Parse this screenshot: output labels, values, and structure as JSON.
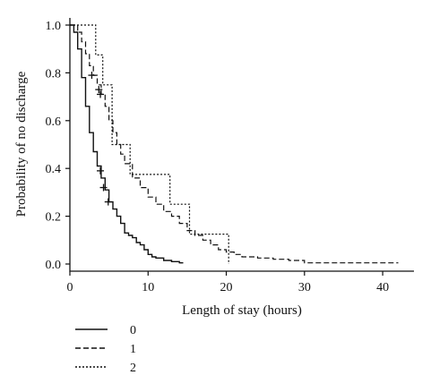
{
  "chart_data": {
    "type": "line",
    "subtype": "kaplan-meier step curves with censoring marks",
    "title": "",
    "xlabel": "Length of stay (hours)",
    "ylabel": "Probability of no discharge",
    "xlim": [
      0,
      44
    ],
    "ylim": [
      -0.03,
      1.03
    ],
    "xticks": [
      0,
      10,
      20,
      30,
      40
    ],
    "xtick_labels": [
      "0",
      "10",
      "20",
      "30",
      "40"
    ],
    "yticks": [
      0.0,
      0.2,
      0.4,
      0.6,
      0.8,
      1.0
    ],
    "ytick_labels": [
      "0.0",
      "0.2",
      "0.4",
      "0.6",
      "0.8",
      "1.0"
    ],
    "grid": false,
    "legend_position": "bottom-left below plot",
    "series": [
      {
        "name": "0",
        "line_style": "solid",
        "color": "#111111",
        "x": [
          0,
          0.5,
          1,
          1.5,
          2,
          2.5,
          3,
          3.5,
          4,
          4.5,
          5,
          5.5,
          6,
          6.5,
          7,
          7.5,
          8,
          8.5,
          9,
          9.5,
          10,
          10.5,
          11,
          12,
          13,
          14,
          14.5
        ],
        "y": [
          1.0,
          0.97,
          0.9,
          0.78,
          0.66,
          0.55,
          0.47,
          0.41,
          0.36,
          0.31,
          0.26,
          0.23,
          0.2,
          0.17,
          0.13,
          0.12,
          0.11,
          0.09,
          0.08,
          0.06,
          0.04,
          0.03,
          0.025,
          0.015,
          0.01,
          0.005,
          0.005
        ],
        "censor_x": [
          3.9,
          4.3,
          4.9
        ],
        "censor_y": [
          0.39,
          0.32,
          0.26
        ]
      },
      {
        "name": "1",
        "line_style": "dashed",
        "color": "#111111",
        "x": [
          0,
          1,
          1.5,
          2,
          2.5,
          3,
          3.5,
          4,
          4.5,
          5,
          5.5,
          6,
          6.5,
          7,
          8,
          9,
          10,
          11,
          12,
          13,
          14,
          15,
          16,
          17,
          18,
          19,
          20,
          21,
          22,
          24,
          26,
          28,
          29.5,
          30,
          42
        ],
        "y": [
          1.0,
          0.97,
          0.93,
          0.88,
          0.83,
          0.79,
          0.75,
          0.71,
          0.66,
          0.6,
          0.55,
          0.5,
          0.46,
          0.42,
          0.36,
          0.32,
          0.28,
          0.25,
          0.22,
          0.2,
          0.17,
          0.14,
          0.12,
          0.1,
          0.08,
          0.06,
          0.05,
          0.04,
          0.03,
          0.025,
          0.02,
          0.015,
          0.015,
          0.005,
          0.005
        ],
        "censor_x": [
          2.8,
          3.7,
          3.9
        ],
        "censor_y": [
          0.79,
          0.73,
          0.71
        ]
      },
      {
        "name": "2",
        "line_style": "dotted",
        "color": "#111111",
        "x": [
          0,
          3.3,
          4.2,
          5.4,
          7.7,
          12.8,
          15.3,
          20.3
        ],
        "y": [
          1.0,
          0.875,
          0.75,
          0.5,
          0.375,
          0.25,
          0.125,
          0.0
        ]
      }
    ]
  }
}
